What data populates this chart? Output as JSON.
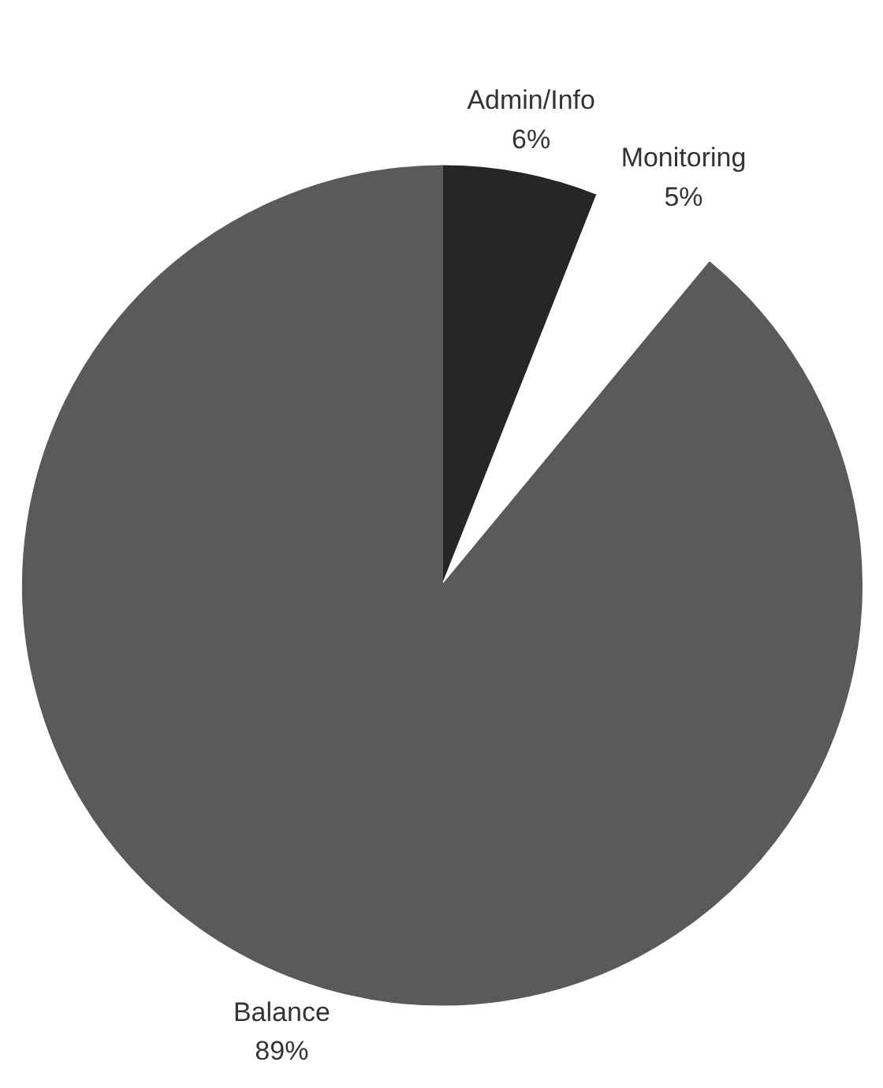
{
  "chart_data": {
    "type": "pie",
    "categories": [
      "Admin/Info",
      "Monitoring",
      "Balance"
    ],
    "values": [
      6,
      5,
      89
    ],
    "colors": [
      "#262626",
      "#ffffff",
      "#5a5a5a"
    ],
    "value_labels": [
      "6%",
      "5%",
      "89%"
    ],
    "legend": false
  }
}
